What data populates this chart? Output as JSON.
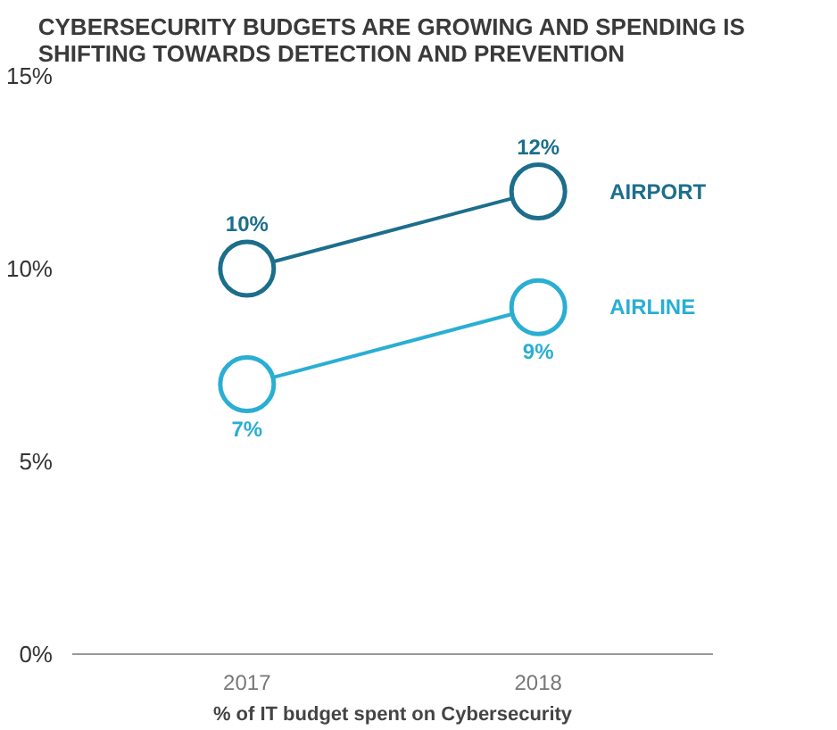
{
  "chart_data": {
    "type": "line",
    "title": "CYBERSECURITY BUDGETS ARE GROWING AND SPENDING IS\nSHIFTING TOWARDS DETECTION AND PREVENTION",
    "xlabel": "% of IT budget spent on Cybersecurity",
    "categories": [
      "2017",
      "2018"
    ],
    "series": [
      {
        "name": "AIRPORT",
        "color": "#1c6e8c",
        "values": [
          10,
          12
        ],
        "value_labels": [
          "10%",
          "12%"
        ]
      },
      {
        "name": "AIRLINE",
        "color": "#2aaed3",
        "values": [
          7,
          9
        ],
        "value_labels": [
          "7%",
          "9%"
        ]
      }
    ],
    "ylim": [
      0,
      15
    ],
    "yticks": [
      {
        "value": 0,
        "label": "0%"
      },
      {
        "value": 5,
        "label": "5%"
      },
      {
        "value": 10,
        "label": "10%"
      },
      {
        "value": 15,
        "label": "15%"
      }
    ],
    "grid": false,
    "marker": "circle",
    "line_style": "solid"
  }
}
